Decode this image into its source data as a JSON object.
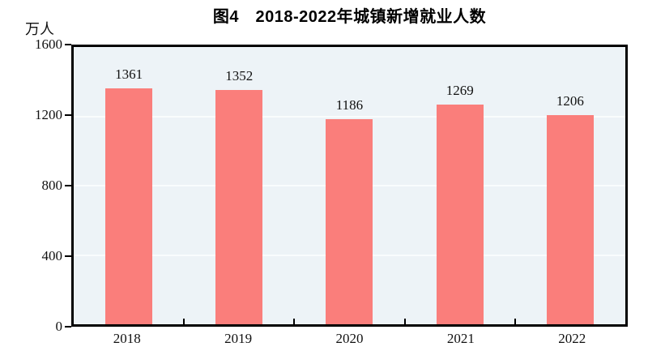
{
  "chart_data": {
    "type": "bar",
    "title": "图4　2018-2022年城镇新增就业人数",
    "unit_label": "万人",
    "categories": [
      "2018",
      "2019",
      "2020",
      "2021",
      "2022"
    ],
    "values": [
      1361,
      1352,
      1186,
      1269,
      1206
    ],
    "ylim": [
      0,
      1600
    ],
    "yticks": [
      0,
      400,
      800,
      1200,
      1600
    ],
    "xlabel": "",
    "ylabel": "万人",
    "data_labels_shown": true,
    "legend": "none",
    "grid": "horizontal",
    "bar_color": "#fa7e7b",
    "plot_background": "#edf3f7",
    "gridline_color": "#f9fcfd",
    "axis_color": "#000000"
  }
}
